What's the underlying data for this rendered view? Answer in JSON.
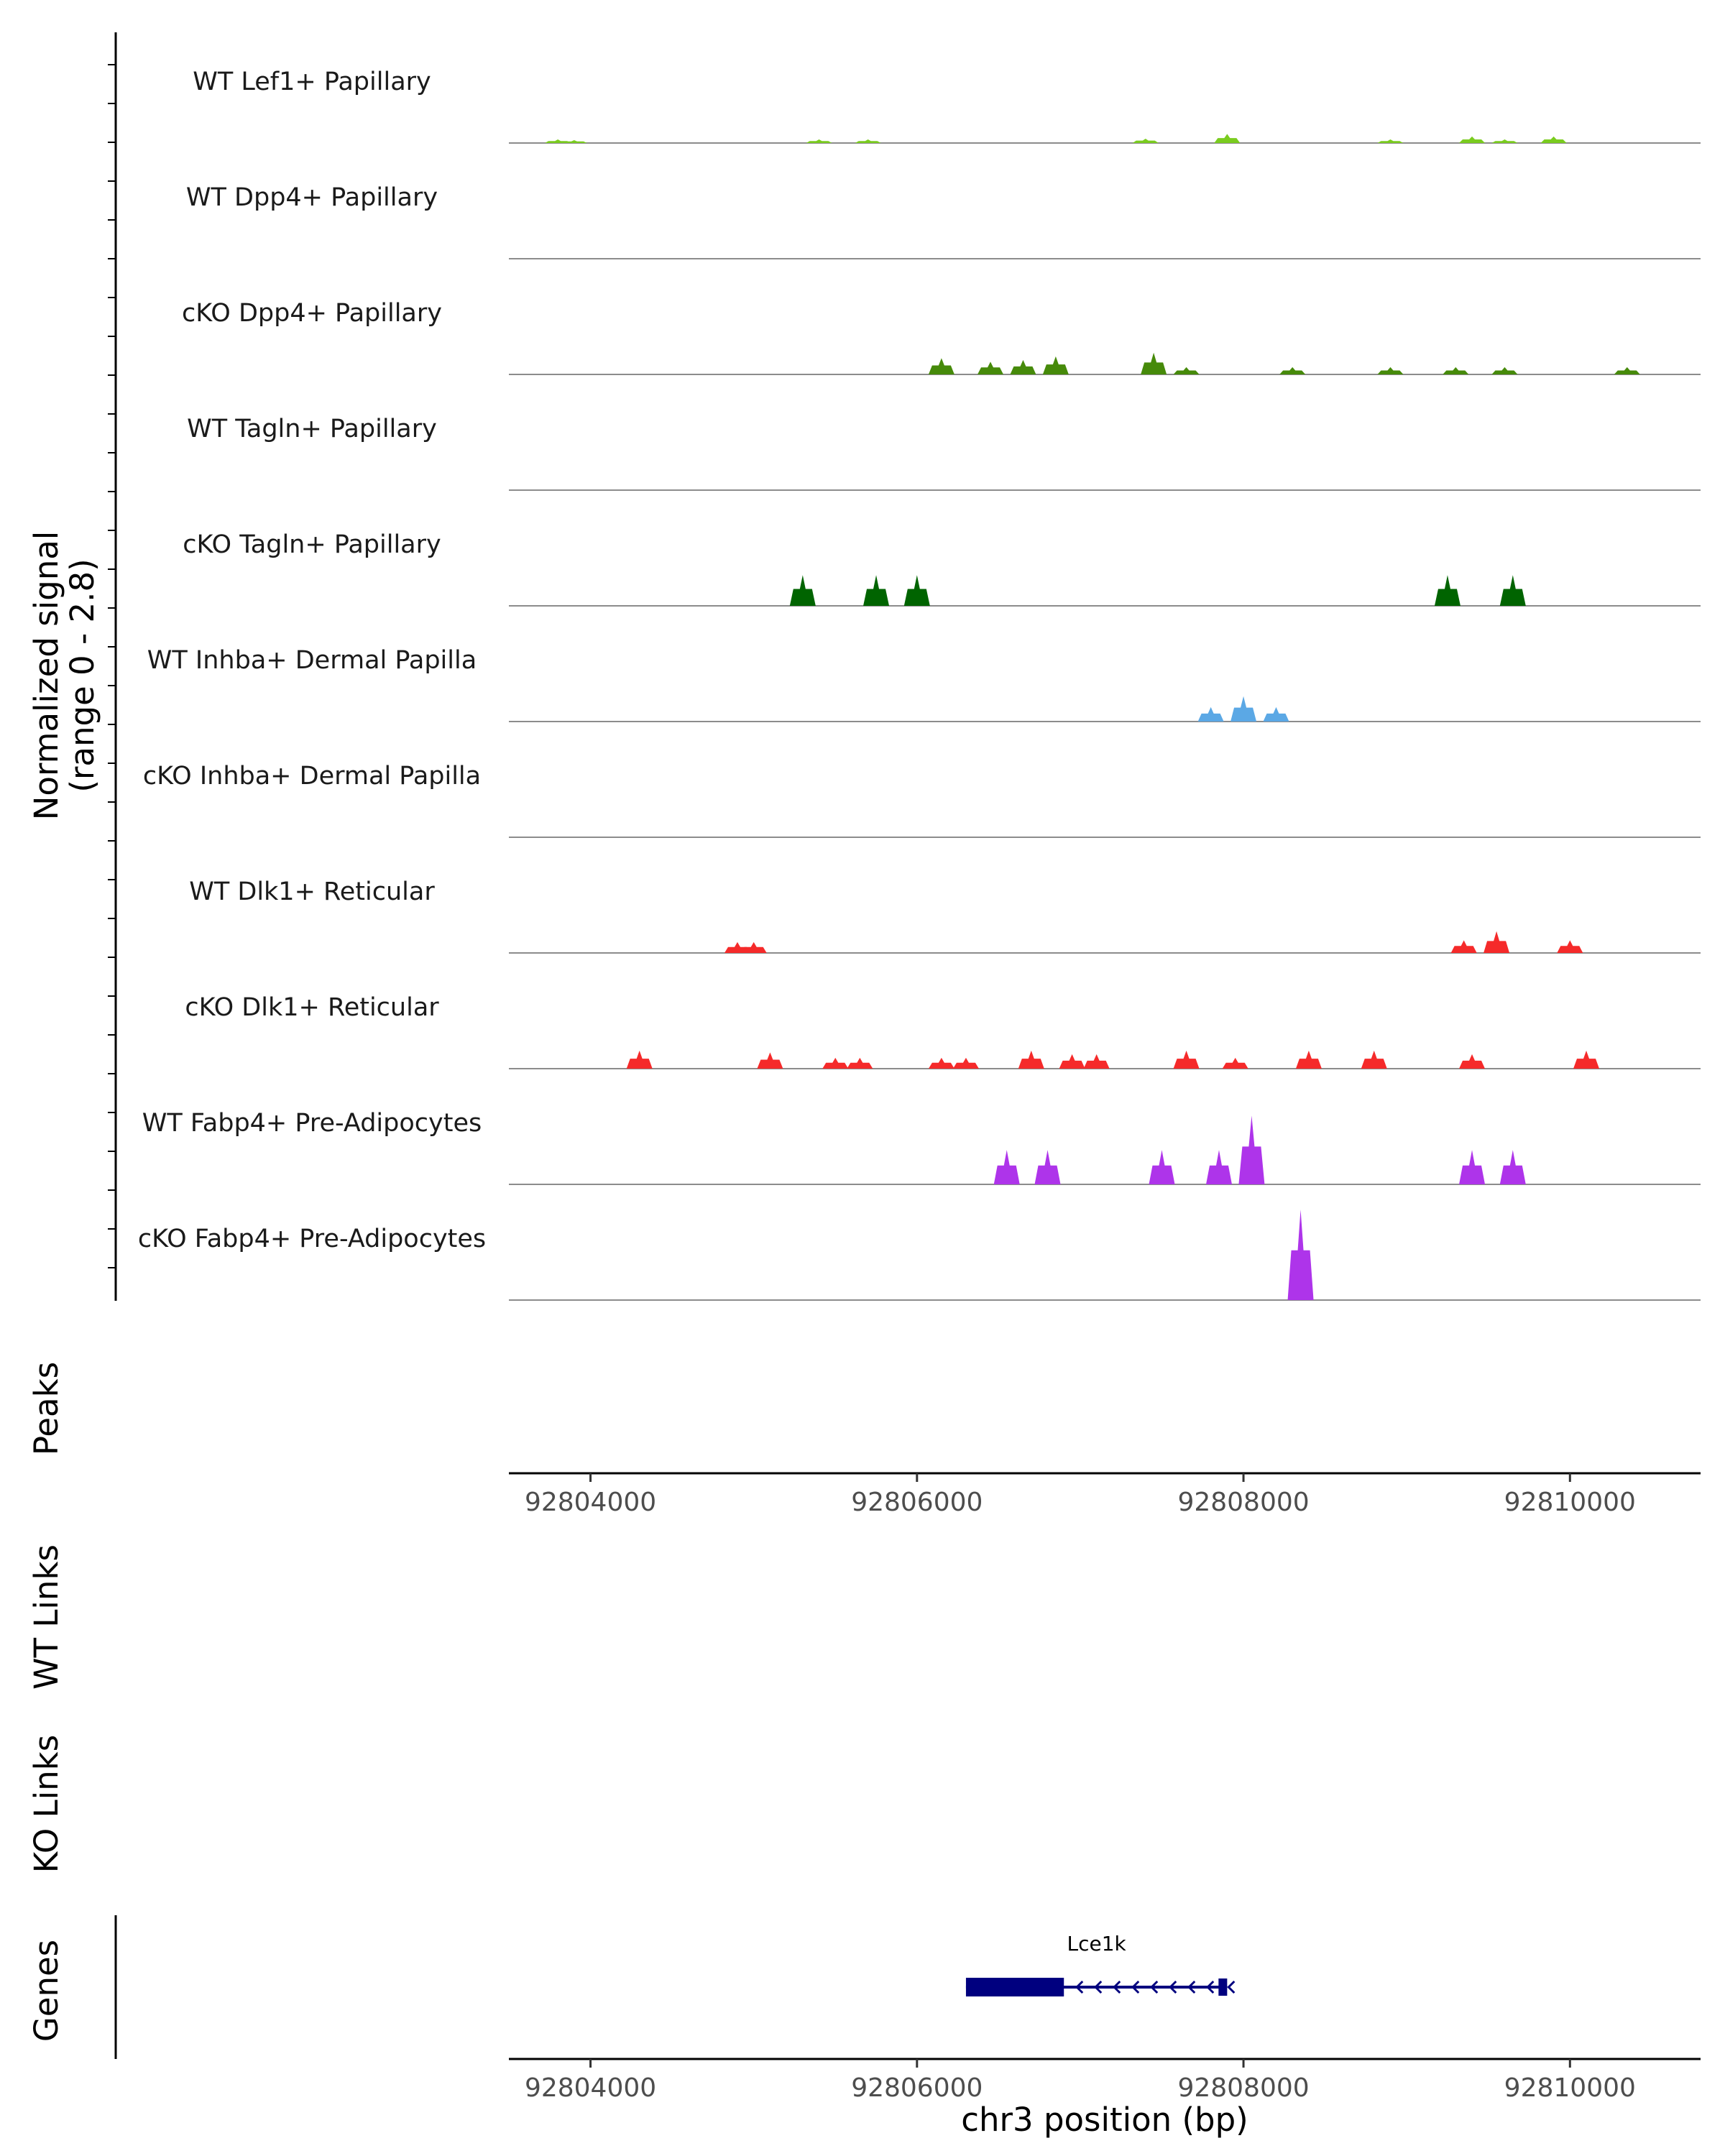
{
  "chart_data": {
    "type": "coverage-tracks",
    "xlabel": "chr3 position (bp)",
    "xlim": [
      92803500,
      92810800
    ],
    "x_ticks": [
      {
        "value": 92804000,
        "label": "92804000"
      },
      {
        "value": 92806000,
        "label": "92806000"
      },
      {
        "value": 92808000,
        "label": "92808000"
      },
      {
        "value": 92810000,
        "label": "92810000"
      }
    ],
    "coverage": {
      "ylabel_line1": "Normalized signal",
      "ylabel_line2": "(range 0 - 2.8)",
      "ylim": [
        0,
        2.8
      ],
      "tracks": [
        {
          "name": "WT Lef1+ Papillary",
          "color": "#7ACC1F",
          "peaks": [
            [
              92803800,
              0.1
            ],
            [
              92803900,
              0.08
            ],
            [
              92805400,
              0.1
            ],
            [
              92805700,
              0.1
            ],
            [
              92807400,
              0.12
            ],
            [
              92807900,
              0.25
            ],
            [
              92808900,
              0.1
            ],
            [
              92809400,
              0.18
            ],
            [
              92809600,
              0.1
            ],
            [
              92809900,
              0.18
            ]
          ]
        },
        {
          "name": "WT Dpp4+ Papillary",
          "color": "#4E8C0E",
          "peaks": []
        },
        {
          "name": "cKO Dpp4+ Papillary",
          "color": "#468A0A",
          "peaks": [
            [
              92806150,
              0.45
            ],
            [
              92806450,
              0.35
            ],
            [
              92806650,
              0.4
            ],
            [
              92806850,
              0.5
            ],
            [
              92807450,
              0.6
            ],
            [
              92807650,
              0.2
            ],
            [
              92808300,
              0.2
            ],
            [
              92808900,
              0.2
            ],
            [
              92809300,
              0.2
            ],
            [
              92809600,
              0.2
            ],
            [
              92810350,
              0.2
            ]
          ]
        },
        {
          "name": "WT Tagln+ Papillary",
          "color": "#006400",
          "peaks": []
        },
        {
          "name": "cKO Tagln+ Papillary",
          "color": "#006400",
          "peaks": [
            [
              92805300,
              0.85
            ],
            [
              92805750,
              0.85
            ],
            [
              92806000,
              0.85
            ],
            [
              92809250,
              0.85
            ],
            [
              92809650,
              0.85
            ]
          ]
        },
        {
          "name": "WT Inhba+ Dermal Papilla",
          "color": "#5BA8E5",
          "peaks": [
            [
              92807800,
              0.4
            ],
            [
              92808000,
              0.7
            ],
            [
              92808200,
              0.4
            ]
          ]
        },
        {
          "name": "cKO Inhba+ Dermal Papilla",
          "color": "#5BA8E5",
          "peaks": []
        },
        {
          "name": "WT Dlk1+ Reticular",
          "color": "#F52A2A",
          "peaks": [
            [
              92804900,
              0.3
            ],
            [
              92805000,
              0.3
            ],
            [
              92809350,
              0.35
            ],
            [
              92809550,
              0.6
            ],
            [
              92810000,
              0.35
            ]
          ]
        },
        {
          "name": "cKO Dlk1+ Reticular",
          "color": "#F52A2A",
          "peaks": [
            [
              92804300,
              0.5
            ],
            [
              92805100,
              0.45
            ],
            [
              92805500,
              0.3
            ],
            [
              92805650,
              0.3
            ],
            [
              92806150,
              0.3
            ],
            [
              92806300,
              0.3
            ],
            [
              92806700,
              0.5
            ],
            [
              92806950,
              0.4
            ],
            [
              92807100,
              0.4
            ],
            [
              92807650,
              0.5
            ],
            [
              92807950,
              0.3
            ],
            [
              92808400,
              0.5
            ],
            [
              92808800,
              0.5
            ],
            [
              92809400,
              0.4
            ],
            [
              92810100,
              0.5
            ]
          ]
        },
        {
          "name": "WT Fabp4+ Pre-Adipocytes",
          "color": "#AE34EA",
          "peaks": [
            [
              92806550,
              0.95
            ],
            [
              92806800,
              0.95
            ],
            [
              92807500,
              0.95
            ],
            [
              92807850,
              0.95
            ],
            [
              92808050,
              1.9
            ],
            [
              92809400,
              0.95
            ],
            [
              92809650,
              0.95
            ]
          ]
        },
        {
          "name": "cKO Fabp4+ Pre-Adipocytes",
          "color": "#AE34EA",
          "peaks": [
            [
              92808350,
              2.5
            ]
          ]
        }
      ]
    },
    "panels": [
      {
        "label": "Peaks"
      },
      {
        "label": "WT Links"
      },
      {
        "label": "KO Links"
      },
      {
        "label": "Genes"
      }
    ],
    "gene": {
      "name": "Lce1k",
      "start": 92806300,
      "end": 92807900,
      "strand": "-",
      "exon_start": 92806300,
      "exon_end": 92806900,
      "color": "#00007F"
    }
  }
}
